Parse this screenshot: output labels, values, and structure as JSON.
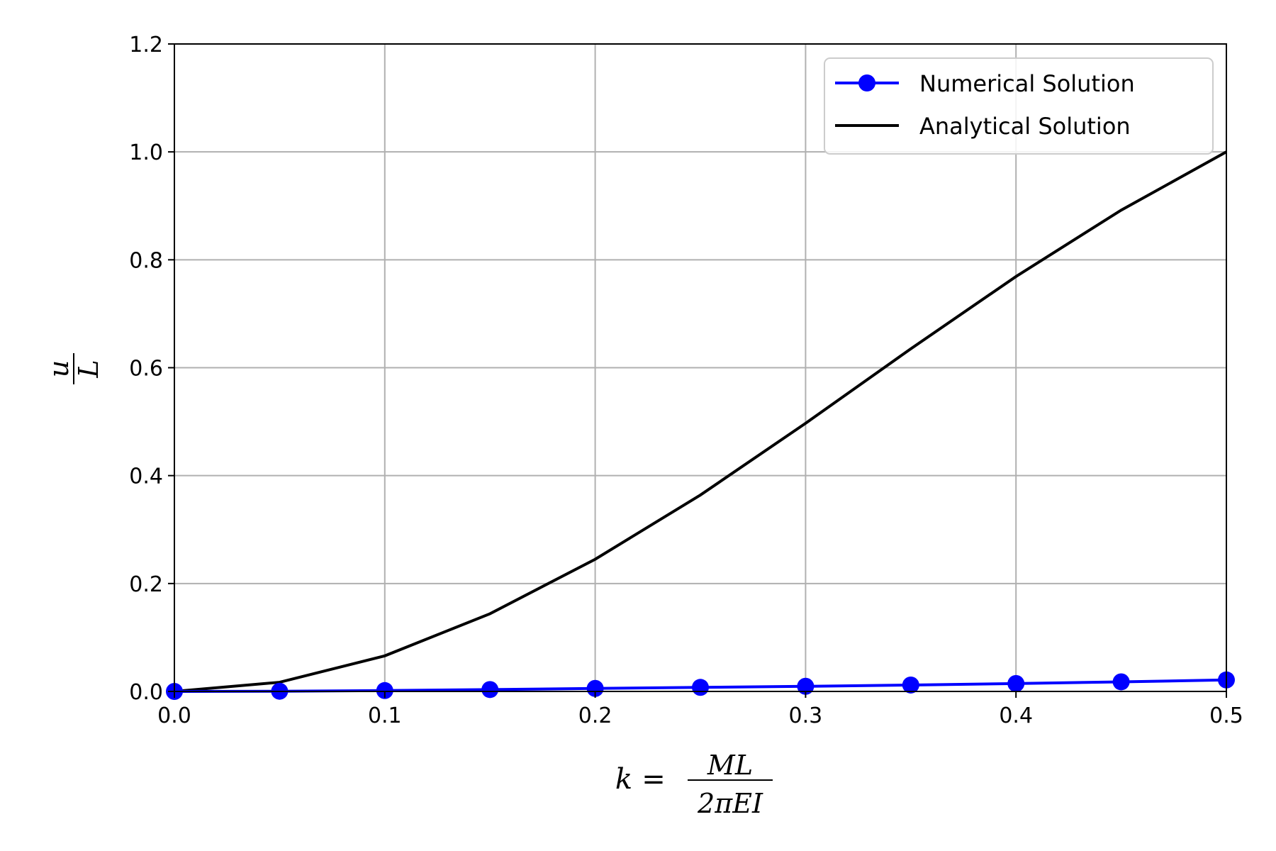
{
  "chart_data": {
    "type": "line",
    "x": [
      0.0,
      0.05,
      0.1,
      0.15,
      0.2,
      0.25,
      0.3,
      0.35,
      0.4,
      0.45,
      0.5
    ],
    "series": [
      {
        "name": "Numerical Solution",
        "color": "#0000ff",
        "marker": "circle",
        "values": [
          0.0,
          0.0004,
          0.0016,
          0.0035,
          0.0056,
          0.0075,
          0.0095,
          0.0119,
          0.0146,
          0.0178,
          0.0213
        ]
      },
      {
        "name": "Analytical Solution",
        "color": "#000000",
        "marker": "none",
        "values": [
          0.0,
          0.017,
          0.066,
          0.144,
          0.245,
          0.364,
          0.497,
          0.635,
          0.769,
          0.892,
          1.0
        ]
      }
    ],
    "xlim": [
      0.0,
      0.5
    ],
    "ylim": [
      0.0,
      1.2
    ],
    "xticks": [
      "0.0",
      "0.1",
      "0.2",
      "0.3",
      "0.4",
      "0.5"
    ],
    "yticks": [
      "0.0",
      "0.2",
      "0.4",
      "0.6",
      "0.8",
      "1.0",
      "1.2"
    ],
    "xlabel": {
      "lhs": "k",
      "eq": "=",
      "numerator": "ML",
      "denominator": "2πEI"
    },
    "ylabel": {
      "numerator": "u",
      "denominator": "L"
    },
    "grid": true,
    "legend_position": "top-right"
  }
}
